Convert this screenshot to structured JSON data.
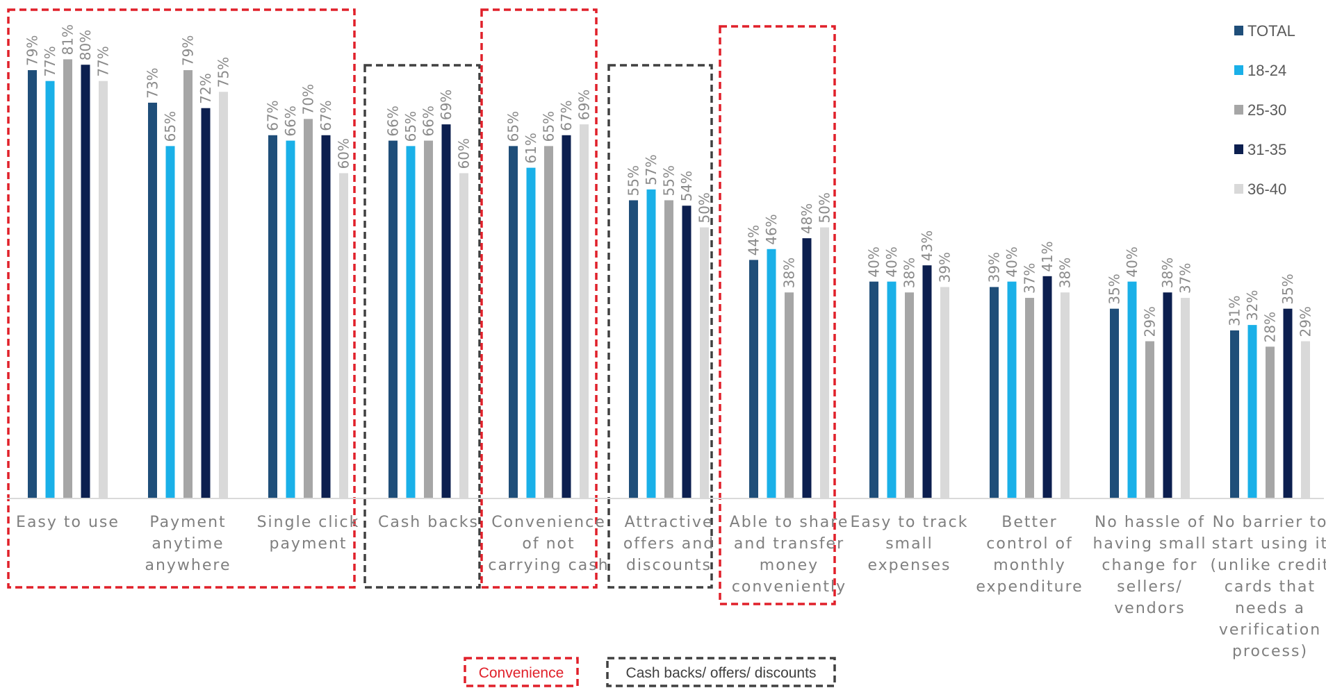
{
  "chart_data": {
    "type": "bar",
    "categories": [
      [
        "Easy to use"
      ],
      [
        "Payment",
        "anytime",
        "anywhere"
      ],
      [
        "Single click",
        "payment"
      ],
      [
        "Cash backs"
      ],
      [
        "Convenience",
        "of not",
        "carrying cash"
      ],
      [
        "Attractive",
        "offers and",
        "discounts"
      ],
      [
        "Able to share",
        "and transfer",
        "money",
        "conveniently"
      ],
      [
        "Easy to track",
        "small",
        "expenses"
      ],
      [
        "Better",
        "control of",
        "monthly",
        "expenditure"
      ],
      [
        "No hassle of",
        "having small",
        "change for",
        "sellers/",
        "vendors"
      ],
      [
        "No barrier to",
        "start using it",
        "(unlike credit",
        "cards that",
        "needs a",
        "verification",
        "process)"
      ]
    ],
    "series": [
      {
        "name": "TOTAL",
        "color": "#1f4e79",
        "values": [
          79,
          73,
          67,
          66,
          65,
          55,
          44,
          40,
          39,
          35,
          31
        ]
      },
      {
        "name": "18-24",
        "color": "#1ab0e8",
        "values": [
          77,
          65,
          66,
          65,
          61,
          57,
          46,
          40,
          40,
          40,
          32
        ]
      },
      {
        "name": "25-30",
        "color": "#a6a6a6",
        "values": [
          81,
          79,
          70,
          66,
          65,
          55,
          38,
          38,
          37,
          29,
          28
        ]
      },
      {
        "name": "31-35",
        "color": "#0c1f4f",
        "values": [
          80,
          72,
          67,
          69,
          67,
          54,
          48,
          43,
          41,
          38,
          35
        ]
      },
      {
        "name": "36-40",
        "color": "#d9d9d9",
        "values": [
          77,
          75,
          60,
          60,
          69,
          50,
          50,
          39,
          38,
          37,
          29
        ]
      }
    ],
    "value_suffix": "%",
    "ylim": [
      0,
      84
    ],
    "legend": "top-right",
    "grid": false,
    "groups": [
      {
        "label": "Convenience",
        "color": "#e0202a",
        "categories": [
          0,
          1,
          2
        ]
      },
      {
        "label": "Cash backs/ offers/ discounts",
        "color": "#404040",
        "categories": [
          3
        ]
      },
      {
        "label": "Convenience",
        "color": "#e0202a",
        "categories": [
          4
        ]
      },
      {
        "label": "Cash backs/ offers/ discounts",
        "color": "#404040",
        "categories": [
          5
        ]
      },
      {
        "label": "Convenience",
        "color": "#e0202a",
        "categories": [
          6
        ]
      }
    ],
    "group_legend": [
      {
        "label": "Convenience",
        "color": "#e0202a"
      },
      {
        "label": "Cash backs/ offers/ discounts",
        "color": "#404040"
      }
    ]
  }
}
